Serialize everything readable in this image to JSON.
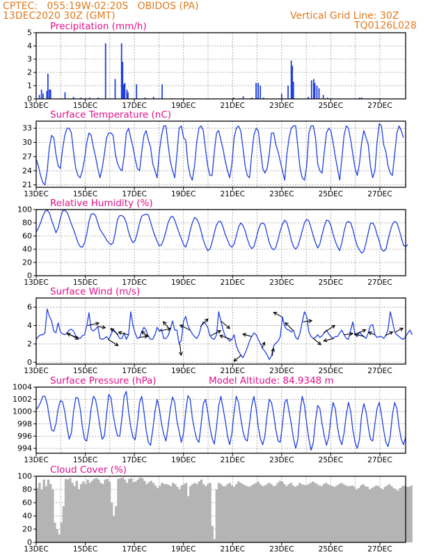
{
  "header": {
    "station": "CPTEC:   055:19W-02:20S   OBIDOS (PA)",
    "run": "13DEC2020 30Z (GMT)",
    "grid_note": "Vertical Grid Line: 30Z",
    "product_code": "TQ0126L028"
  },
  "colors": {
    "header": "#e07a1f",
    "panel_title": "#e0108a",
    "series": "#1f3fe0",
    "cloud": "#b4b4b4",
    "wind_arrow": "#000000"
  },
  "chart_data": [
    {
      "id": "precip",
      "type": "bar",
      "title": "Precipitation (mm/h)",
      "ylim": [
        0,
        5
      ],
      "yticks": [
        "0",
        "1",
        "2",
        "3",
        "4",
        "5"
      ],
      "grid": true,
      "x_tick_labels": [
        "13DEC",
        "15DEC",
        "17DEC",
        "19DEC",
        "21DEC",
        "23DEC",
        "25DEC",
        "27DEC"
      ],
      "bars": [
        [
          0.3,
          0.3
        ],
        [
          0.5,
          0.7
        ],
        [
          0.65,
          0.4
        ],
        [
          1.0,
          0.6
        ],
        [
          1.1,
          1.9
        ],
        [
          1.25,
          0.7
        ],
        [
          1.35,
          0.7
        ],
        [
          2.7,
          0.5
        ],
        [
          3.5,
          0.15
        ],
        [
          4.2,
          0.1
        ],
        [
          5.0,
          0.1
        ],
        [
          5.8,
          0.1
        ],
        [
          6.5,
          4.2
        ],
        [
          7.4,
          1.5
        ],
        [
          8.0,
          4.2
        ],
        [
          8.1,
          2.8
        ],
        [
          8.2,
          1.1
        ],
        [
          8.3,
          1.2
        ],
        [
          8.5,
          0.7
        ],
        [
          8.6,
          0.5
        ],
        [
          9.4,
          1.1
        ],
        [
          10.2,
          0.1
        ],
        [
          11.0,
          0.15
        ],
        [
          11.8,
          1.1
        ],
        [
          18.5,
          0.1
        ],
        [
          19.4,
          0.2
        ],
        [
          20.2,
          0.1
        ],
        [
          20.6,
          1.2
        ],
        [
          20.8,
          1.2
        ],
        [
          21.0,
          1.0
        ],
        [
          21.3,
          0.1
        ],
        [
          23.0,
          0.4
        ],
        [
          23.6,
          1.0
        ],
        [
          23.9,
          2.9
        ],
        [
          24.0,
          2.5
        ],
        [
          24.1,
          1.3
        ],
        [
          25.5,
          0.15
        ],
        [
          25.8,
          1.4
        ],
        [
          26.0,
          1.5
        ],
        [
          26.1,
          1.2
        ],
        [
          26.3,
          1.0
        ],
        [
          26.5,
          0.8
        ],
        [
          26.9,
          0.3
        ],
        [
          27.3,
          0.1
        ],
        [
          30.3,
          0.1
        ],
        [
          30.5,
          0.1
        ],
        [
          37.3,
          0.1
        ]
      ]
    },
    {
      "id": "temperature",
      "type": "line",
      "title": "Surface Temperature (nC)",
      "ylim": [
        20.5,
        34.5
      ],
      "yticks": [
        "21",
        "24",
        "27",
        "30",
        "33"
      ],
      "grid": true,
      "x_tick_labels": [
        "13DEC",
        "15DEC",
        "17DEC",
        "19DEC",
        "21DEC",
        "23DEC",
        "25DEC",
        "27DEC"
      ],
      "values": [
        26.5,
        25,
        23,
        21.5,
        21,
        24,
        29,
        31.5,
        31,
        27.5,
        25,
        24.5,
        28.5,
        31.5,
        33,
        33,
        32,
        28,
        24.5,
        23,
        22.5,
        24,
        26.5,
        30,
        32,
        31.5,
        29,
        27,
        24.5,
        22.5,
        24.5,
        27.5,
        31,
        32,
        32,
        31.5,
        27.5,
        25.5,
        24.5,
        24,
        27,
        32,
        33,
        31,
        29,
        26.5,
        24.5,
        24,
        28,
        31.5,
        32.5,
        30.5,
        29,
        25.5,
        24,
        22.5,
        28,
        31.5,
        33.5,
        33.5,
        29.5,
        26,
        24,
        22.5,
        27.5,
        33,
        33.5,
        31,
        30.5,
        25.5,
        23,
        22,
        25,
        30,
        33,
        33.5,
        32.5,
        28.5,
        25,
        23,
        23,
        28,
        32,
        32.5,
        30.5,
        28.5,
        26,
        24,
        22.5,
        25.5,
        31,
        33,
        33.5,
        32.5,
        29,
        25,
        23,
        22.5,
        27.5,
        31.5,
        33,
        32.5,
        28.5,
        24.5,
        23.5,
        24.5,
        27.5,
        32,
        32,
        29.5,
        28,
        26,
        24,
        22,
        27.5,
        31,
        33,
        33.5,
        33.5,
        29,
        24.5,
        22.5,
        22,
        25,
        32,
        33.5,
        33.5,
        31,
        25.5,
        24,
        23.5,
        28,
        32,
        33,
        32.5,
        30,
        27,
        24.5,
        22,
        26.5,
        31.5,
        33.5,
        33,
        30.5,
        27.5,
        24.5,
        23,
        25.5,
        30,
        32.5,
        31,
        29.5,
        25,
        22.5,
        24,
        30,
        34,
        33.5,
        29.5,
        28,
        25,
        23.5,
        23,
        27.5,
        32,
        33.5,
        32.5,
        31
      ]
    },
    {
      "id": "humidity",
      "type": "line",
      "title": "Relative Humidity (%)",
      "ylim": [
        0,
        100
      ],
      "yticks": [
        "0",
        "20",
        "40",
        "60",
        "80",
        "100"
      ],
      "grid": true,
      "x_tick_labels": [
        "13DEC",
        "15DEC",
        "17DEC",
        "19DEC",
        "21DEC",
        "23DEC",
        "25DEC",
        "27DEC"
      ],
      "values": [
        66,
        72,
        80,
        90,
        97,
        99,
        95,
        84,
        75,
        65,
        72,
        87,
        98,
        99,
        96,
        88,
        78,
        70,
        60,
        50,
        44,
        43,
        50,
        63,
        82,
        93,
        94,
        91,
        80,
        70,
        65,
        60,
        54,
        50,
        47,
        50,
        66,
        85,
        91,
        91,
        88,
        80,
        66,
        56,
        50,
        53,
        65,
        80,
        90,
        92,
        93,
        92,
        81,
        70,
        60,
        52,
        45,
        47,
        55,
        67,
        80,
        88,
        90,
        84,
        74,
        65,
        56,
        47,
        43,
        53,
        68,
        80,
        88,
        86,
        79,
        67,
        54,
        45,
        38,
        40,
        51,
        65,
        77,
        82,
        82,
        73,
        62,
        54,
        46,
        43,
        48,
        60,
        73,
        80,
        76,
        68,
        56,
        46,
        41,
        44,
        56,
        69,
        78,
        80,
        77,
        63,
        50,
        42,
        39,
        43,
        55,
        68,
        78,
        84,
        80,
        68,
        54,
        44,
        40,
        45,
        56,
        68,
        80,
        85,
        83,
        72,
        60,
        50,
        42,
        48,
        62,
        75,
        84,
        83,
        76,
        63,
        52,
        44,
        38,
        50,
        67,
        80,
        82,
        80,
        70,
        56,
        45,
        39,
        34,
        37,
        50,
        65,
        79,
        80,
        74,
        62,
        52,
        40,
        37,
        40,
        54,
        68,
        78,
        82,
        80,
        70,
        58,
        46,
        44,
        47
      ]
    },
    {
      "id": "wind",
      "type": "line",
      "title": "Surface Wind (m/s)",
      "ylim": [
        -0.2,
        7
      ],
      "yticks": [
        "0",
        "2",
        "4",
        "6"
      ],
      "grid": true,
      "x_tick_labels": [
        "13DEC",
        "15DEC",
        "17DEC",
        "19DEC",
        "21DEC",
        "23DEC",
        "25DEC",
        "27DEC"
      ],
      "values": [
        2.5,
        2.8,
        3.0,
        3.0,
        3.2,
        5.8,
        5.0,
        4.5,
        3.4,
        3.2,
        4.3,
        3.3,
        3.1,
        3.0,
        3.2,
        3.5,
        3.6,
        3.4,
        2.9,
        2.7,
        2.6,
        2.9,
        3.0,
        4.0,
        5.4,
        3.6,
        3.4,
        3.6,
        3.9,
        2.6,
        2.5,
        2.6,
        2.8,
        2.5,
        3.0,
        3.6,
        3.3,
        3.0,
        2.6,
        2.6,
        3.2,
        2.5,
        3.0,
        5.5,
        4.0,
        3.2,
        2.6,
        2.7,
        3.3,
        3.8,
        3.5,
        2.8,
        2.5,
        2.5,
        3.0,
        3.8,
        3.4,
        3.6,
        2.6,
        2.6,
        2.9,
        3.6,
        4.5,
        3.5,
        3.5,
        2.0,
        2.4,
        4.5,
        5.0,
        4.0,
        3.5,
        3.1,
        2.8,
        2.6,
        3.0,
        3.9,
        4.4,
        4.2,
        3.8,
        2.9,
        2.6,
        2.5,
        3.0,
        5.5,
        4.5,
        3.5,
        2.8,
        2.6,
        2.3,
        2.5,
        3.0,
        1.8,
        1.2,
        0.8,
        0.5,
        1.0,
        1.6,
        2.3,
        2.8,
        3.2,
        3.0,
        2.5,
        2.0,
        1.5,
        1.2,
        0.8,
        0.3,
        0.7,
        1.8,
        2.1,
        2.3,
        2.8,
        4.9,
        3.9,
        3.6,
        3.5,
        3.3,
        3.5,
        2.7,
        2.5,
        3.2,
        4.4,
        5.5,
        5.0,
        3.3,
        2.8,
        2.6,
        2.7,
        3.0,
        2.7,
        2.9,
        3.2,
        3.5,
        3.1,
        2.8,
        2.6,
        2.8,
        2.8,
        3.2,
        3.5,
        3.0,
        2.6,
        2.5,
        3.5,
        4.4,
        3.0,
        2.8,
        3.3,
        3.0,
        2.8,
        2.6,
        3.2,
        4.0,
        4.1,
        3.0,
        2.7,
        2.8,
        2.8,
        2.6,
        2.9,
        3.6,
        5.5,
        4.5,
        3.3,
        3.0,
        2.8,
        2.6,
        2.5,
        2.8,
        3.2,
        3.5,
        3.0
      ],
      "vectors": [
        [
          3,
          0.9,
          -0.5
        ],
        [
          4,
          -0.8,
          0.3
        ],
        [
          5,
          0.9,
          0.2
        ],
        [
          6,
          0.6,
          -0.1
        ],
        [
          7,
          0.8,
          -0.5
        ],
        [
          8,
          -0.6,
          0.5
        ],
        [
          9,
          -0.8,
          0.2
        ],
        [
          10,
          0.7,
          0.1
        ],
        [
          11,
          -0.6,
          0.4
        ],
        [
          12,
          0.9,
          0.2
        ],
        [
          13,
          -0.5,
          0.6
        ],
        [
          14,
          0.1,
          -0.9
        ],
        [
          15,
          -0.8,
          0.4
        ],
        [
          16,
          0.6,
          0.6
        ],
        [
          17,
          0.8,
          0.4
        ],
        [
          18,
          0.7,
          -0.6
        ],
        [
          19,
          -0.9,
          0.3
        ],
        [
          20,
          -0.6,
          -0.5
        ],
        [
          21,
          -0.7,
          0.2
        ],
        [
          22,
          0.2,
          0.5
        ],
        [
          23,
          0.1,
          0.6
        ],
        [
          24,
          -0.7,
          0.4
        ],
        [
          25,
          -0.6,
          0.6
        ],
        [
          26,
          0.7,
          0.1
        ],
        [
          27,
          0.6,
          -0.5
        ],
        [
          28,
          0.9,
          0.6
        ],
        [
          29,
          -0.8,
          -0.2
        ],
        [
          30,
          0.7,
          0.1
        ],
        [
          31,
          0.9,
          0.4
        ],
        [
          32,
          -0.8,
          0.2
        ],
        [
          33,
          -0.5,
          0.2
        ],
        [
          34,
          0.6,
          0.3
        ],
        [
          35,
          0.6,
          0.3
        ]
      ]
    },
    {
      "id": "pressure",
      "type": "line",
      "title": "Surface Pressure (hPa)",
      "annotation": "Model Altitude: 84.9348  m",
      "ylim": [
        993.2,
        1004
      ],
      "yticks": [
        "994",
        "996",
        "998",
        "1000",
        "1002",
        "1004"
      ],
      "grid": true,
      "x_tick_labels": [
        "13DEC",
        "15DEC",
        "17DEC",
        "19DEC",
        "21DEC",
        "23DEC",
        "25DEC",
        "27DEC"
      ],
      "values": [
        1000.3,
        1000.8,
        1001.5,
        1002.5,
        1002.5,
        1001.3,
        999,
        997,
        996.8,
        998,
        1000.5,
        1001.8,
        1001.6,
        1000,
        997.5,
        995.5,
        996.5,
        1000,
        1002.3,
        1002.2,
        1000.5,
        997.5,
        995.5,
        995.2,
        997.5,
        1000.5,
        1002.5,
        1002,
        1000,
        997.5,
        995.5,
        996,
        999.5,
        1002.8,
        1002.3,
        999.5,
        997.5,
        996,
        996,
        999,
        1002.5,
        1003.3,
        1000,
        997.5,
        995.8,
        995.4,
        998,
        1001.5,
        1002.5,
        1000,
        997,
        995,
        994.5,
        997,
        1000,
        1002,
        1000.5,
        998,
        996.3,
        995.2,
        997.5,
        1000.5,
        1002.4,
        1001.5,
        998.5,
        996.8,
        995,
        996.5,
        1000,
        1002.6,
        1002,
        999,
        997,
        995.5,
        995,
        998,
        1001.3,
        1002,
        1000,
        997.5,
        995.6,
        994.7,
        997.5,
        1001,
        1002.5,
        1000.5,
        998.5,
        996,
        994.6,
        996.5,
        1000,
        1002.5,
        1001.5,
        999,
        996.8,
        995.5,
        995.2,
        998,
        1001,
        1002.5,
        1000.5,
        997.5,
        995.5,
        994.6,
        996,
        999.5,
        1002,
        1001.5,
        999.5,
        997,
        995.2,
        995,
        998,
        1001.5,
        1002,
        1000,
        998,
        995.6,
        994,
        995.5,
        1000,
        1002.5,
        1001,
        998,
        995.5,
        993.7,
        995,
        998.5,
        1001,
        1000.5,
        998,
        996,
        994.5,
        995.8,
        999,
        1001.5,
        1000.5,
        997.5,
        995.5,
        994.6,
        996.5,
        999.5,
        1001.5,
        1000,
        997,
        995,
        994,
        995.5,
        999.5,
        1001.3,
        1000,
        997.5,
        995.5,
        995.2,
        998,
        1000.5,
        1001.5,
        999.5,
        997,
        995,
        994.3,
        996,
        999.5,
        1001.5,
        1000.5,
        997.5,
        995.5,
        994.6,
        995.8
      ]
    },
    {
      "id": "cloud",
      "type": "area",
      "title": "Cloud Cover (%)",
      "ylim": [
        0,
        100
      ],
      "yticks": [
        "0",
        "20",
        "40",
        "60",
        "80",
        "100"
      ],
      "grid": true,
      "x_tick_labels": [
        "13DEC",
        "15DEC",
        "17DEC",
        "19DEC",
        "21DEC",
        "23DEC",
        "25DEC",
        "27DEC"
      ],
      "values": [
        82,
        90,
        80,
        95,
        85,
        95,
        88,
        80,
        30,
        20,
        12,
        30,
        55,
        96,
        95,
        97,
        90,
        85,
        93,
        80,
        88,
        92,
        88,
        95,
        90,
        93,
        96,
        97,
        95,
        90,
        88,
        95,
        96,
        92,
        60,
        40,
        55,
        96,
        97,
        98,
        95,
        90,
        96,
        97,
        91,
        92,
        95,
        98,
        97,
        93,
        88,
        91,
        93,
        90,
        86,
        82,
        85,
        90,
        88,
        88,
        87,
        85,
        90,
        88,
        84,
        80,
        86,
        88,
        90,
        70,
        85,
        88,
        90,
        88,
        92,
        95,
        88,
        85,
        88,
        90,
        25,
        5,
        80,
        90,
        88,
        85,
        85,
        88,
        90,
        86,
        84,
        88,
        92,
        90,
        88,
        86,
        85,
        84,
        86,
        88,
        90,
        92,
        88,
        85,
        86,
        88,
        90,
        88,
        85,
        86,
        90,
        93,
        92,
        88,
        85,
        88,
        90,
        86,
        84,
        86,
        90,
        88,
        87,
        86,
        88,
        90,
        92,
        90,
        88,
        86,
        85,
        88,
        90,
        88,
        86,
        85,
        84,
        86,
        88,
        90,
        88,
        86,
        85,
        85,
        86,
        84,
        80,
        82,
        86,
        88,
        85,
        84,
        80,
        82,
        84,
        86,
        85,
        82,
        80,
        84,
        86,
        88,
        85,
        82,
        80,
        78,
        82,
        85,
        86,
        84,
        84,
        86
      ]
    }
  ]
}
